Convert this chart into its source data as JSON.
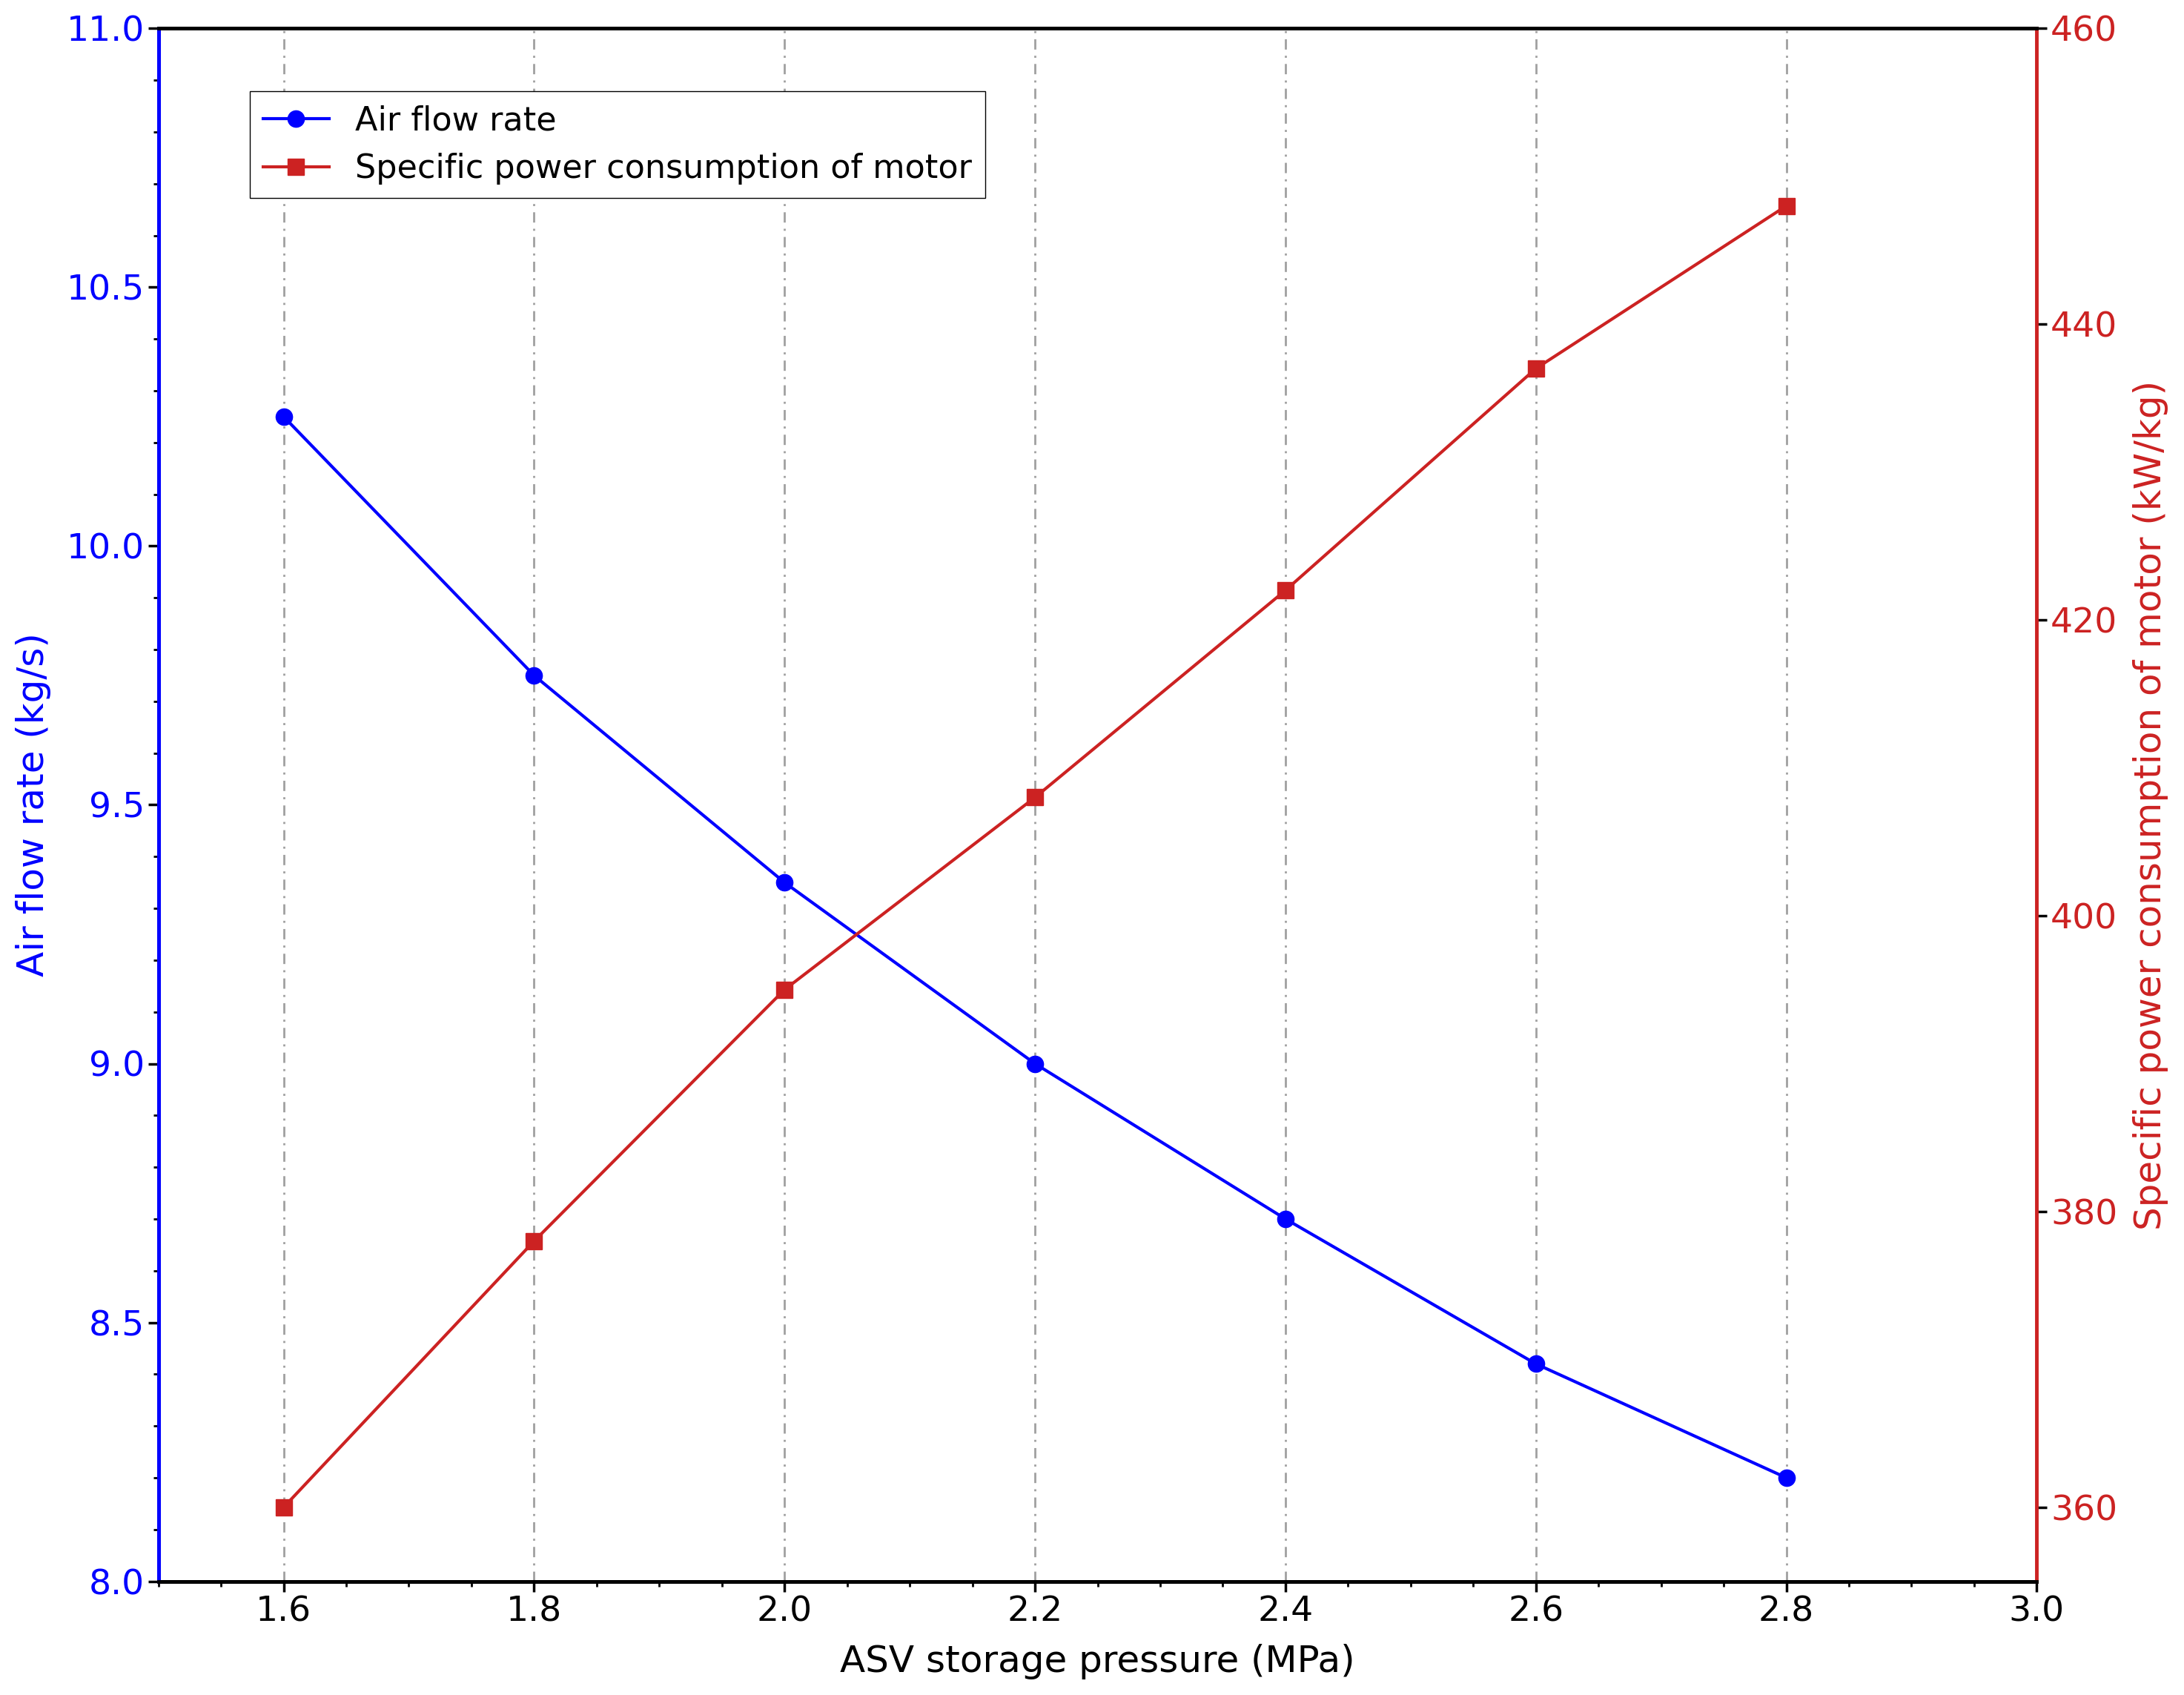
{
  "x": [
    1.6,
    1.8,
    2.0,
    2.2,
    2.4,
    2.6,
    2.8
  ],
  "air_flow_rate": [
    10.25,
    9.75,
    9.35,
    9.0,
    8.7,
    8.42,
    8.2
  ],
  "specific_power": [
    360,
    378,
    395,
    408,
    422,
    437,
    448
  ],
  "xlim": [
    1.5,
    3.0
  ],
  "ylim_left": [
    8.0,
    11.0
  ],
  "ylim_right": [
    355,
    460
  ],
  "xlabel": "ASV storage pressure (MPa)",
  "ylabel_left": "Air flow rate (kg/s)",
  "ylabel_right": "Specific power consumption of motor (kW/kg)",
  "legend_air": "Air flow rate",
  "legend_power": "Specific power consumption of motor",
  "blue_color": "#0000FF",
  "red_color": "#CC2222",
  "xticks": [
    1.6,
    1.8,
    2.0,
    2.2,
    2.4,
    2.6,
    2.8,
    3.0
  ],
  "yticks_left": [
    8.0,
    8.5,
    9.0,
    9.5,
    10.0,
    10.5,
    11.0
  ],
  "yticks_right": [
    360,
    380,
    400,
    420,
    440,
    460
  ],
  "vlines": [
    1.6,
    1.8,
    2.0,
    2.2,
    2.4,
    2.6,
    2.8
  ],
  "label_fontsize": 36,
  "tick_fontsize": 34,
  "legend_fontsize": 32,
  "linewidth": 3.0,
  "markersize": 16,
  "spine_linewidth": 3.5
}
